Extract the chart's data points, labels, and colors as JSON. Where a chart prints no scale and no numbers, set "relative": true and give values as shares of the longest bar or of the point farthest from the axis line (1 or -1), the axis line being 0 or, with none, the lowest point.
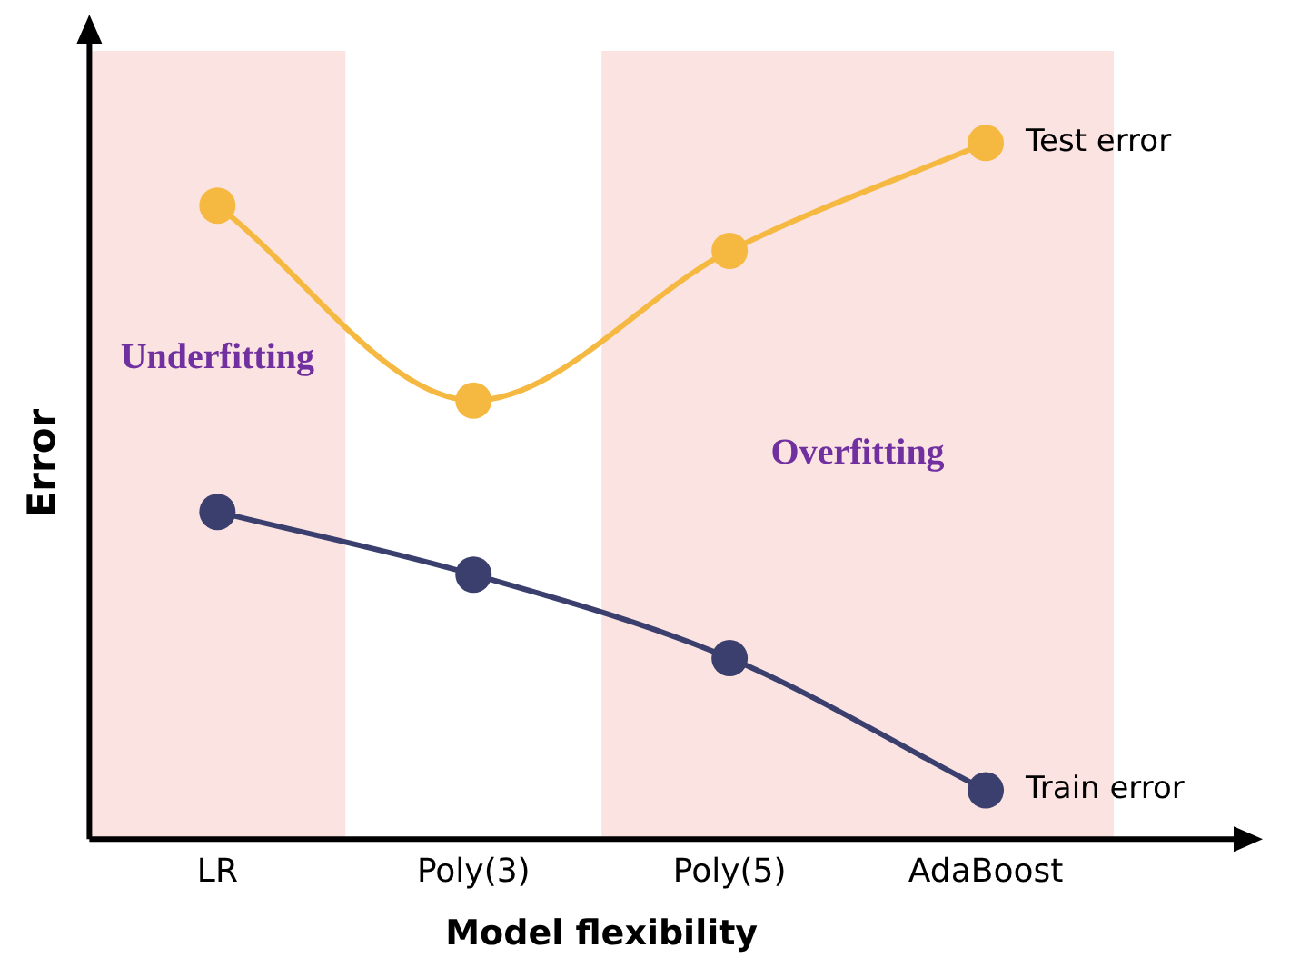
{
  "chart_data": {
    "type": "line",
    "relative": true,
    "xlabel": "Model flexibility",
    "ylabel": "Error",
    "categories": [
      "LR",
      "Poly(3)",
      "Poly(5)",
      "AdaBoost"
    ],
    "series": [
      {
        "name": "Test error",
        "color": "#f5b942",
        "values": [
          0.91,
          0.63,
          0.845,
          1
        ]
      },
      {
        "name": "Train error",
        "color": "#3b3f6e",
        "values": [
          0.47,
          0.38,
          0.26,
          0.07
        ]
      }
    ],
    "bands": [
      {
        "axis": "x",
        "from": "LR",
        "to": "LR",
        "label": "Underfitting",
        "color": "#fbe3e1"
      },
      {
        "axis": "x",
        "from": "Poly(5)",
        "to": "AdaBoost",
        "label": "Overfitting",
        "color": "#fbe3e1"
      }
    ],
    "marker": "circle",
    "legend": false,
    "grid": false
  }
}
